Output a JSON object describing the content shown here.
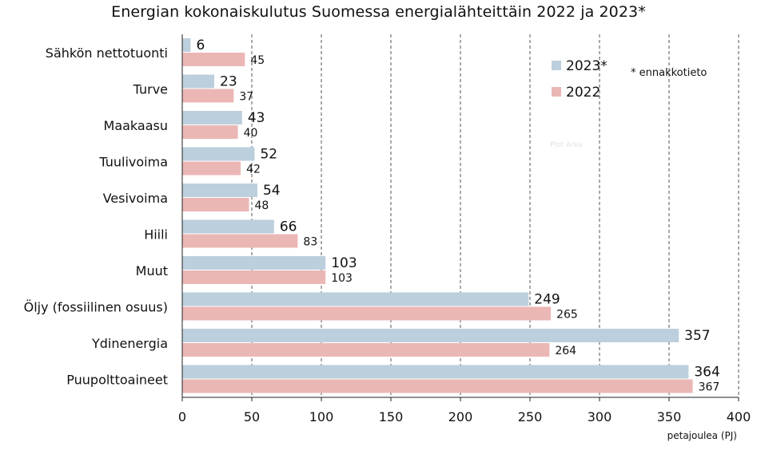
{
  "chart_data": {
    "type": "bar",
    "orientation": "horizontal",
    "title": "Energian kokonaiskulutus Suomessa energialähteittäin 2022 ja 2023*",
    "xlabel": "petajoulea (PJ)",
    "ylabel": "",
    "xlim": [
      0,
      400
    ],
    "xticks": [
      0,
      50,
      100,
      150,
      200,
      250,
      300,
      350,
      400
    ],
    "grid": "vertical dashed",
    "legend_position": "top-right",
    "note": "* ennakkotieto",
    "categories": [
      "Sähkön nettotuonti",
      "Turve",
      "Maakaasu",
      "Tuulivoima",
      "Vesivoima",
      "Hiili",
      "Muut",
      "Öljy (fossiilinen osuus)",
      "Ydinenergia",
      "Puupolttoaineet"
    ],
    "series": [
      {
        "name": "2023*",
        "color": "#bccfdc",
        "values": [
          6,
          23,
          43,
          52,
          54,
          66,
          103,
          249,
          357,
          364
        ]
      },
      {
        "name": "2022",
        "color": "#ebb7b5",
        "values": [
          45,
          37,
          40,
          42,
          48,
          83,
          103,
          265,
          264,
          367
        ]
      }
    ],
    "watermark": "Plot Area"
  }
}
